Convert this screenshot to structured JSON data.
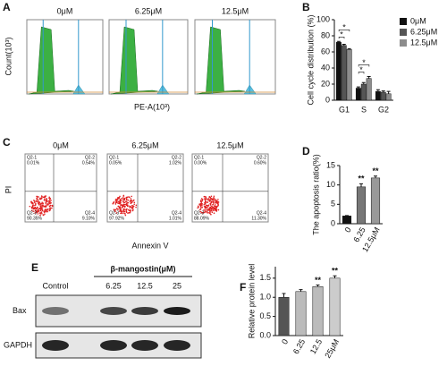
{
  "panel_labels": [
    "A",
    "B",
    "C",
    "D",
    "E",
    "F"
  ],
  "flow_cytometry": {
    "titles": [
      "0μM",
      "6.25μM",
      "12.5μM"
    ],
    "ylabel": "Count(10³)",
    "xlabel": "PE-A(10³)"
  },
  "apoptosis_plots": {
    "titles": [
      "0μM",
      "6.25μM",
      "12.5μM"
    ],
    "ylabel": "PI",
    "xlabel": "Annexin V",
    "quadrants": [
      [
        {
          "name": "Q2-1",
          "percent": "0.01%"
        },
        {
          "name": "Q2-2",
          "percent": "0.54%"
        },
        {
          "name": "Q2-3",
          "percent": "90.35%"
        },
        {
          "name": "Q2-4",
          "percent": "9.10%"
        }
      ],
      [
        {
          "name": "Q2-1",
          "percent": "0.05%"
        },
        {
          "name": "Q2-2",
          "percent": "1.02%"
        },
        {
          "name": "Q2-3",
          "percent": "97.92%"
        },
        {
          "name": "Q2-4",
          "percent": "1.01%"
        }
      ],
      [
        {
          "name": "Q2-1",
          "percent": "0.00%"
        },
        {
          "name": "Q2-2",
          "percent": "0.60%"
        },
        {
          "name": "Q2-3",
          "percent": "88.09%"
        },
        {
          "name": "Q2-4",
          "percent": "11.30%"
        }
      ]
    ]
  },
  "western_blot": {
    "treatment": "β-mangostin(μM)",
    "lanes": [
      "Control",
      "6.25",
      "12.5",
      "25"
    ],
    "proteins": [
      "Bax",
      "GAPDH"
    ]
  },
  "chart_data": [
    {
      "type": "grouped_bar",
      "ylabel": "Cell cycle distribution (%)",
      "categories": [
        "G1",
        "S",
        "G2"
      ],
      "series": [
        {
          "name": "0μM",
          "color": "#111111",
          "values": [
            72,
            15,
            11
          ],
          "errors": [
            1,
            1.5,
            2
          ]
        },
        {
          "name": "6.25μM",
          "color": "#555555",
          "values": [
            68,
            20,
            10
          ],
          "errors": [
            1.5,
            2,
            1.5
          ]
        },
        {
          "name": "12.5μM",
          "color": "#8c8c8c",
          "values": [
            63,
            27,
            8
          ],
          "errors": [
            1,
            2.5,
            3
          ]
        }
      ],
      "ylim": [
        0,
        100
      ],
      "yticks": [
        0,
        20,
        40,
        60,
        80,
        100
      ],
      "legend": "top-right",
      "annotations": [
        "*",
        "*",
        "*",
        "*"
      ]
    },
    {
      "type": "bar",
      "ylabel": "The apoptosis ratio(%)",
      "categories": [
        "0",
        "6.25",
        "12.5μM"
      ],
      "values": [
        2,
        9.5,
        11.8
      ],
      "errors": [
        0.1,
        0.8,
        0.5
      ],
      "colors": [
        "#111111",
        "#777777",
        "#999999"
      ],
      "ylim": [
        0,
        15
      ],
      "yticks": [
        0,
        5,
        10,
        15
      ],
      "significance": [
        null,
        "**",
        "**"
      ]
    },
    {
      "type": "bar",
      "ylabel": "Relative protein level",
      "categories": [
        "0",
        "6.25",
        "12.5",
        "25μM"
      ],
      "values": [
        1.0,
        1.15,
        1.28,
        1.5
      ],
      "errors": [
        0.1,
        0.05,
        0.04,
        0.06
      ],
      "colors": [
        "#555555",
        "#bbbbbb",
        "#bbbbbb",
        "#cccccc"
      ],
      "ylim": [
        0,
        1.8
      ],
      "yticks": [
        {
          "value": 0,
          "label": "0.0"
        },
        {
          "value": 0.5,
          "label": "0.5"
        },
        {
          "value": 1,
          "label": "1.0"
        },
        {
          "value": 1.5,
          "label": "1.5"
        }
      ],
      "significance": [
        null,
        null,
        "**",
        "**"
      ]
    }
  ]
}
